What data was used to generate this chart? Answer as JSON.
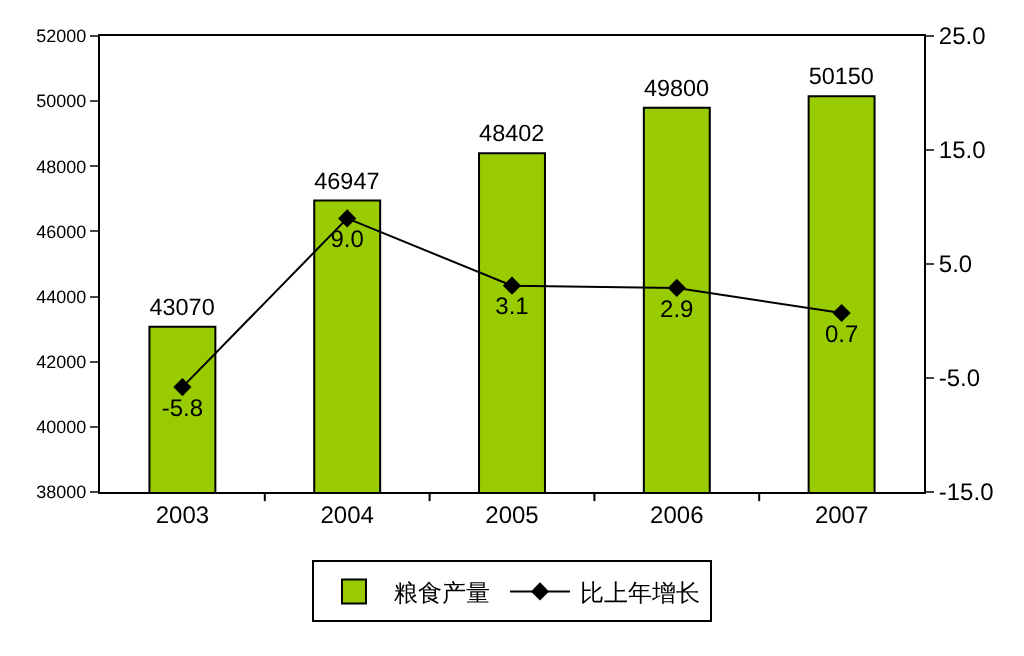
{
  "chart_data": {
    "type": "bar",
    "categories": [
      "2003",
      "2004",
      "2005",
      "2006",
      "2007"
    ],
    "series": [
      {
        "name": "粮食产量",
        "color": "#99cc00",
        "values": [
          43070,
          46947,
          48402,
          49800,
          50150
        ]
      },
      {
        "name": "比上年增长",
        "type": "line",
        "axis": "y2",
        "color": "#000000",
        "values": [
          -5.8,
          9.0,
          3.1,
          2.9,
          0.7
        ],
        "value_labels": [
          "-5.8",
          "9.0",
          "3.1",
          "2.9",
          "0.7"
        ]
      }
    ],
    "data_labels": true,
    "ylim": [
      38000,
      52000
    ],
    "yticks": [
      38000,
      40000,
      42000,
      44000,
      46000,
      48000,
      50000,
      52000
    ],
    "y2lim": [
      -15,
      25
    ],
    "y2ticks": [
      {
        "value": -15,
        "label": "-15.0"
      },
      {
        "value": -5,
        "label": "-5.0"
      },
      {
        "value": 5,
        "label": "5.0"
      },
      {
        "value": 15,
        "label": "15.0"
      },
      {
        "value": 25,
        "label": "25.0"
      }
    ],
    "grid": false,
    "legend": "bottom",
    "marker": "diamond",
    "line_style": "solid"
  }
}
